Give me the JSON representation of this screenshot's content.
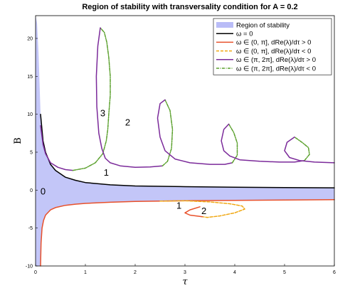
{
  "chart_data": {
    "type": "line",
    "title": "Region of stability with transversality condition for A = 0.2",
    "xlabel": "τ",
    "ylabel": "B",
    "xlim": [
      0,
      6
    ],
    "ylim": [
      -10,
      23
    ],
    "xticks": [
      "0",
      "1",
      "2",
      "3",
      "4",
      "5",
      "6"
    ],
    "yticks": [
      "-10",
      "-5",
      "0",
      "5",
      "10",
      "15",
      "20"
    ],
    "grid": false,
    "legend_position": "top-right",
    "legend": [
      {
        "label": "Region of stability",
        "kind": "patch",
        "color": "#b9bcf7"
      },
      {
        "label": "ω = 0",
        "kind": "line",
        "color": "#000000",
        "dash": ""
      },
      {
        "label": "ω ∈ (0, π], dRe(λ)/dτ > 0",
        "kind": "line",
        "color": "#e8502a",
        "dash": ""
      },
      {
        "label": "ω ∈ (0, π], dRe(λ)/dτ < 0",
        "kind": "line",
        "color": "#f0a814",
        "dash": "4,2"
      },
      {
        "label": "ω ∈ (π, 2π], dRe(λ)/dτ > 0",
        "kind": "line",
        "color": "#7b2a9a",
        "dash": ""
      },
      {
        "label": "ω ∈ (π, 2π], dRe(λ)/dτ < 0",
        "kind": "line",
        "color": "#5aa02c",
        "dash": "4,1.5,1,1.5"
      }
    ],
    "annotations": [
      {
        "text": "3",
        "x": 1.35,
        "y": 10.1
      },
      {
        "text": "2",
        "x": 1.85,
        "y": 8.9
      },
      {
        "text": "1",
        "x": 1.42,
        "y": 2.3
      },
      {
        "text": "0",
        "x": 0.15,
        "y": -0.2
      },
      {
        "text": "1",
        "x": 2.88,
        "y": -2.1
      },
      {
        "text": "2",
        "x": 3.38,
        "y": -2.8
      }
    ],
    "series": [
      {
        "name": "ω = 0",
        "color": "#000000",
        "dash": "",
        "x": [
          0.1,
          0.15,
          0.2,
          0.3,
          0.4,
          0.6,
          0.8,
          1.0,
          1.5,
          2.0,
          3.0,
          4.0,
          5.0,
          6.0
        ],
        "y": [
          10.0,
          6.5,
          5.0,
          3.4,
          2.6,
          1.7,
          1.3,
          1.0,
          0.7,
          0.55,
          0.45,
          0.38,
          0.33,
          0.3
        ]
      },
      {
        "name": "ω ∈ (0, π], dRe(λ)/dτ > 0",
        "color": "#e8502a",
        "dash": "",
        "x": [
          0.1,
          0.11,
          0.13,
          0.16,
          0.2,
          0.3,
          0.4,
          0.6,
          0.8,
          1.0,
          1.5,
          2.0,
          2.5,
          3.0,
          4.0,
          5.0,
          6.0
        ],
        "y": [
          -10.0,
          -7.0,
          -5.0,
          -4.0,
          -3.3,
          -2.6,
          -2.3,
          -2.0,
          -1.85,
          -1.75,
          -1.6,
          -1.5,
          -1.45,
          -1.4,
          -1.35,
          -1.3,
          -1.25
        ]
      },
      {
        "name": "ω ∈ (0, π], dRe(λ)/dτ < 0",
        "color": "#f0a814",
        "dash": "4,2",
        "x": [
          2.5,
          3.0,
          3.5,
          3.9,
          4.15,
          4.2,
          4.0,
          3.7,
          3.45,
          3.35
        ],
        "y": [
          -1.45,
          -1.4,
          -1.55,
          -1.8,
          -2.1,
          -2.5,
          -3.0,
          -3.4,
          -3.6,
          -3.5
        ]
      },
      {
        "name": "ω ∈ (0, π], dRe(λ)/dτ > 0 (loop)",
        "color": "#e8502a",
        "dash": "",
        "x": [
          3.35,
          3.1,
          3.0,
          3.1,
          3.3
        ],
        "y": [
          -3.5,
          -3.3,
          -3.0,
          -2.6,
          -2.2
        ]
      },
      {
        "name": "ω ∈ (π, 2π], dRe(λ)/dτ > 0",
        "color": "#7b2a9a",
        "dash": "",
        "x": [
          0.1,
          0.15,
          0.2,
          0.3,
          0.45,
          0.6,
          0.75
        ],
        "y": [
          8.5,
          6.0,
          4.8,
          3.6,
          3.0,
          2.7,
          2.6
        ]
      },
      {
        "name": "ω ∈ (π, 2π], dRe(λ)/dτ < 0",
        "color": "#5aa02c",
        "dash": "4,1.5,1,1.5",
        "x": [
          0.75,
          1.0,
          1.2,
          1.35,
          1.42,
          1.45,
          1.47,
          1.5,
          1.5,
          1.47,
          1.43,
          1.38,
          1.3
        ],
        "y": [
          2.6,
          2.9,
          3.6,
          4.8,
          6.5,
          8.0,
          10.0,
          12.5,
          15.0,
          17.5,
          19.5,
          20.8,
          21.4
        ]
      },
      {
        "name": "ω ∈ (π, 2π], dRe(λ)/dτ > 0 (loop 3)",
        "color": "#7b2a9a",
        "dash": "",
        "x": [
          1.3,
          1.25,
          1.22,
          1.23,
          1.27,
          1.33,
          1.4,
          1.5,
          1.7,
          2.0,
          2.3,
          2.55
        ],
        "y": [
          21.4,
          19.0,
          15.0,
          11.0,
          7.5,
          5.5,
          4.2,
          3.6,
          3.2,
          3.0,
          3.05,
          3.2
        ]
      },
      {
        "name": "ω ∈ (π, 2π], dRe(λ)/dτ < 0 (loop 2)",
        "color": "#5aa02c",
        "dash": "4,1.5,1,1.5",
        "x": [
          2.55,
          2.65,
          2.73,
          2.75,
          2.7,
          2.6
        ],
        "y": [
          3.2,
          3.8,
          5.5,
          8.0,
          10.5,
          11.9
        ]
      },
      {
        "name": "ω ∈ (π, 2π], dRe(λ)/dτ > 0 (loop 2b)",
        "color": "#7b2a9a",
        "dash": "",
        "x": [
          2.6,
          2.5,
          2.45,
          2.5,
          2.6,
          2.8,
          3.1,
          3.5,
          3.8,
          3.95
        ],
        "y": [
          11.9,
          11.4,
          9.5,
          7.0,
          5.2,
          4.1,
          3.6,
          3.4,
          3.4,
          3.6
        ]
      },
      {
        "name": "ω ∈ (π, 2π], dRe(λ)/dτ < 0 (loop 1)",
        "color": "#5aa02c",
        "dash": "4,1.5,1,1.5",
        "x": [
          3.95,
          4.05,
          4.05,
          3.98,
          3.88
        ],
        "y": [
          3.6,
          4.6,
          6.2,
          7.6,
          8.7
        ]
      },
      {
        "name": "ω ∈ (π, 2π], dRe(λ)/dτ > 0 (loop 1b)",
        "color": "#7b2a9a",
        "dash": "",
        "x": [
          3.88,
          3.78,
          3.73,
          3.78,
          3.9,
          4.1,
          4.5,
          4.9,
          5.2,
          5.4
        ],
        "y": [
          8.7,
          8.0,
          6.5,
          5.2,
          4.5,
          4.0,
          3.8,
          3.7,
          3.7,
          3.9
        ]
      },
      {
        "name": "ω ∈ (π, 2π], dRe(λ)/dτ < 0 (loop 0)",
        "color": "#5aa02c",
        "dash": "4,1.5,1,1.5",
        "x": [
          5.4,
          5.5,
          5.48,
          5.35,
          5.2
        ],
        "y": [
          3.9,
          4.7,
          5.6,
          6.3,
          7.0
        ]
      },
      {
        "name": "ω ∈ (π, 2π], dRe(λ)/dτ > 0 (tail)",
        "color": "#7b2a9a",
        "dash": "",
        "x": [
          5.2,
          5.05,
          5.0,
          5.1,
          5.3,
          5.6,
          6.0
        ],
        "y": [
          7.0,
          6.3,
          5.2,
          4.3,
          3.9,
          3.7,
          3.6
        ]
      }
    ],
    "stability_region": {
      "color": "#b9bcf7",
      "upper_x": [
        0.0,
        0.03,
        0.06,
        0.1,
        0.15,
        0.2,
        0.3,
        0.4,
        0.6,
        0.8,
        1.0,
        1.5,
        2.0,
        3.0,
        4.0,
        5.0,
        6.0
      ],
      "upper_y": [
        23.0,
        22.0,
        18.0,
        10.0,
        6.5,
        5.0,
        3.4,
        2.6,
        1.7,
        1.3,
        1.0,
        0.7,
        0.55,
        0.45,
        0.38,
        0.33,
        0.3
      ],
      "lower_x": [
        0.1,
        0.11,
        0.13,
        0.16,
        0.2,
        0.3,
        0.4,
        0.6,
        0.8,
        1.0,
        1.5,
        2.0,
        2.5,
        3.0,
        4.0,
        5.0,
        6.0
      ],
      "lower_y": [
        -10.0,
        -7.0,
        -5.0,
        -4.0,
        -3.3,
        -2.6,
        -2.3,
        -2.0,
        -1.85,
        -1.75,
        -1.6,
        -1.5,
        -1.45,
        -1.4,
        -1.35,
        -1.3,
        -1.25
      ]
    }
  }
}
